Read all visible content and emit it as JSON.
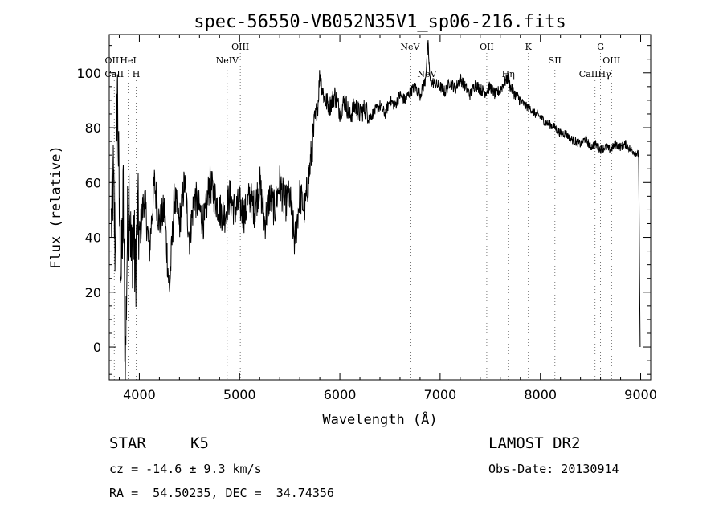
{
  "chart_data": {
    "type": "line",
    "title": "spec-56550-VB052N35V1_sp06-216.fits",
    "xlabel": "Wavelength (Å)",
    "ylabel": "Flux (relative)",
    "xlim": [
      3700,
      9100
    ],
    "ylim": [
      -12,
      114
    ],
    "x_ticks": [
      4000,
      5000,
      6000,
      7000,
      8000,
      9000
    ],
    "y_ticks": [
      0,
      20,
      40,
      60,
      80,
      100
    ],
    "grid": false,
    "legend": "none",
    "line_color": "#000000",
    "spectral_lines": [
      {
        "label": "OII",
        "wavelength": 3727,
        "row": 2
      },
      {
        "label": "HeI",
        "wavelength": 3889,
        "row": 2
      },
      {
        "label": "CaII",
        "wavelength": 3750,
        "row": 3
      },
      {
        "label": "H",
        "wavelength": 3969,
        "row": 3
      },
      {
        "label": "OIII",
        "wavelength": 5007,
        "row": 1
      },
      {
        "label": "NeIV",
        "wavelength": 4876,
        "row": 2
      },
      {
        "label": "NeV",
        "wavelength": 6700,
        "row": 1
      },
      {
        "label": "NeV",
        "wavelength": 6868,
        "row": 3
      },
      {
        "label": "OII",
        "wavelength": 7465,
        "row": 1
      },
      {
        "label": "Hη",
        "wavelength": 7680,
        "row": 3
      },
      {
        "label": "K",
        "wavelength": 7880,
        "row": 1
      },
      {
        "label": "SII",
        "wavelength": 8145,
        "row": 2
      },
      {
        "label": "CaIIHγ",
        "wavelength": 8545,
        "row": 3
      },
      {
        "label": "G",
        "wavelength": 8600,
        "row": 1
      },
      {
        "label": "OIII",
        "wavelength": 8710,
        "row": 2
      }
    ],
    "series": [
      {
        "x": [
          3720,
          3740,
          3760,
          3780,
          3800,
          3820,
          3840,
          3860,
          3880,
          3900,
          3920,
          3940,
          3960,
          3980,
          4000,
          4050,
          4100,
          4150,
          4200,
          4250,
          4300,
          4350,
          4400,
          4450,
          4500,
          4550,
          4600,
          4650,
          4700,
          4750,
          4800,
          4850,
          4900,
          4950,
          5000,
          5050,
          5100,
          5150,
          5200,
          5250,
          5300,
          5350,
          5400,
          5450,
          5500,
          5550,
          5600,
          5650,
          5700,
          5730,
          5760,
          5780,
          5800,
          5820,
          5850,
          5900,
          5950,
          6000,
          6050,
          6100,
          6150,
          6200,
          6250,
          6300,
          6350,
          6400,
          6450,
          6500,
          6550,
          6600,
          6650,
          6700,
          6750,
          6800,
          6850,
          6880,
          6900,
          6950,
          7000,
          7050,
          7100,
          7150,
          7200,
          7250,
          7300,
          7350,
          7400,
          7450,
          7500,
          7550,
          7600,
          7650,
          7680,
          7700,
          7750,
          7800,
          7850,
          7900,
          7950,
          8000,
          8050,
          8100,
          8150,
          8200,
          8250,
          8300,
          8350,
          8400,
          8450,
          8500,
          8550,
          8600,
          8650,
          8700,
          8750,
          8800,
          8850,
          8900,
          8950,
          8980,
          8995
        ],
        "y": [
          45,
          60,
          35,
          98,
          50,
          25,
          55,
          -10,
          40,
          60,
          30,
          45,
          25,
          50,
          40,
          55,
          35,
          60,
          45,
          50,
          20,
          55,
          45,
          60,
          40,
          55,
          50,
          45,
          60,
          55,
          50,
          48,
          55,
          50,
          52,
          48,
          55,
          50,
          60,
          45,
          55,
          50,
          60,
          52,
          55,
          38,
          55,
          50,
          65,
          75,
          85,
          88,
          100,
          95,
          90,
          88,
          92,
          86,
          90,
          84,
          88,
          85,
          87,
          84,
          86,
          88,
          85,
          90,
          88,
          92,
          90,
          93,
          95,
          92,
          97,
          110,
          97,
          96,
          95,
          93,
          97,
          94,
          98,
          95,
          92,
          96,
          94,
          93,
          95,
          92,
          94,
          97,
          98,
          95,
          92,
          90,
          88,
          87,
          85,
          84,
          82,
          81,
          80,
          78,
          78,
          76,
          75,
          74,
          76,
          73,
          74,
          72,
          73,
          72,
          74,
          73,
          74,
          72,
          71,
          70,
          0
        ]
      }
    ]
  },
  "info": {
    "object_class": "STAR",
    "subclass": "K5",
    "survey": "LAMOST DR2",
    "obs_date": "Obs-Date: 20130914",
    "redshift": "cz = -14.6 ± 9.3 km/s",
    "coords": "RA =  54.50235, DEC =  34.74356"
  }
}
